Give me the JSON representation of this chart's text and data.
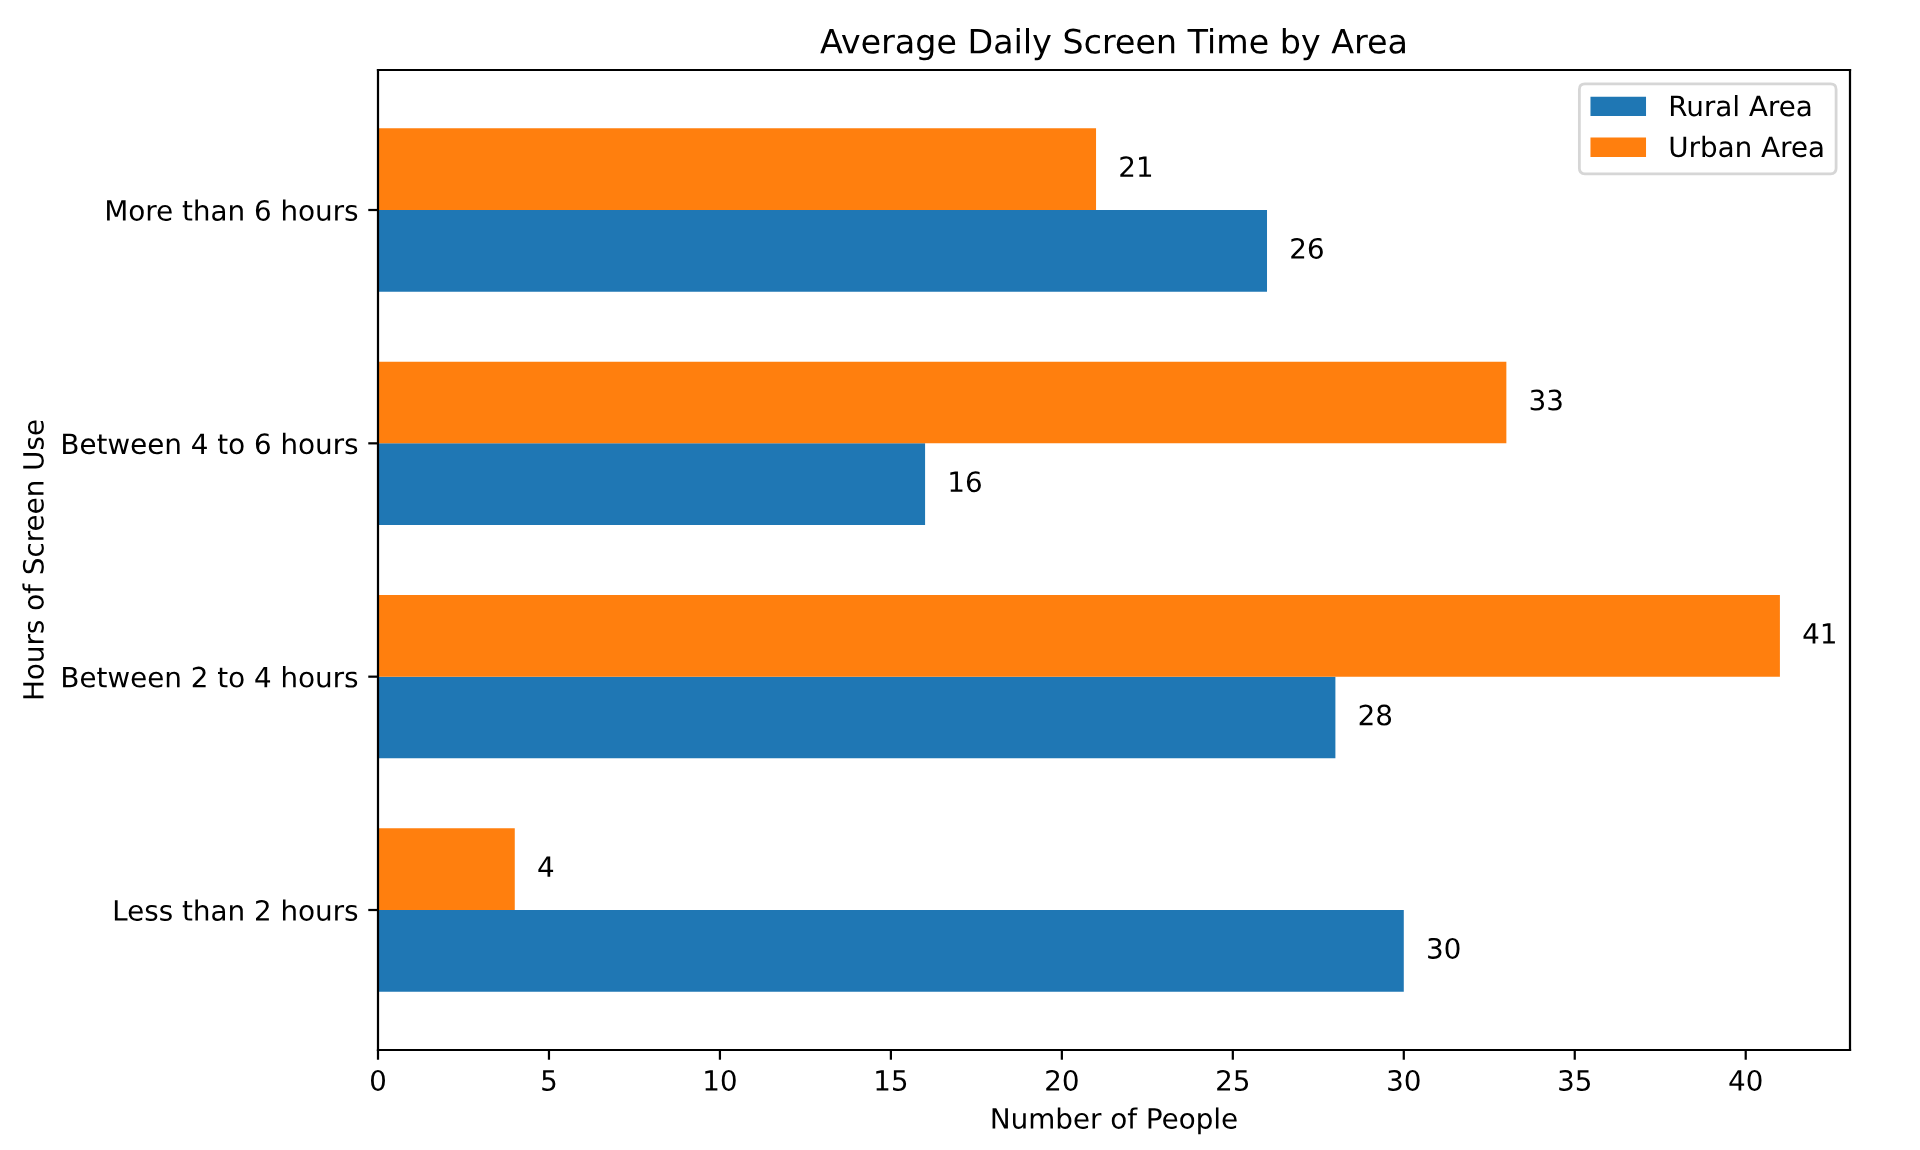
{
  "chart_data": {
    "type": "bar",
    "orientation": "horizontal",
    "title": "Average Daily Screen Time by Area",
    "xlabel": "Number of People",
    "ylabel": "Hours of Screen Use",
    "categories": [
      "More than 6 hours",
      "Between 4 to 6 hours",
      "Between 2 to 4 hours",
      "Less than 2 hours"
    ],
    "series": [
      {
        "name": "Rural Area",
        "color": "#1f77b4",
        "values": [
          26,
          16,
          28,
          30
        ]
      },
      {
        "name": "Urban Area",
        "color": "#ff7f0e",
        "values": [
          21,
          33,
          41,
          4
        ]
      }
    ],
    "xlim": [
      0,
      43.05
    ],
    "xticks": [
      0,
      5,
      10,
      15,
      20,
      25,
      30,
      35,
      40
    ],
    "data_labels": true,
    "legend": "top right",
    "grid": false
  }
}
